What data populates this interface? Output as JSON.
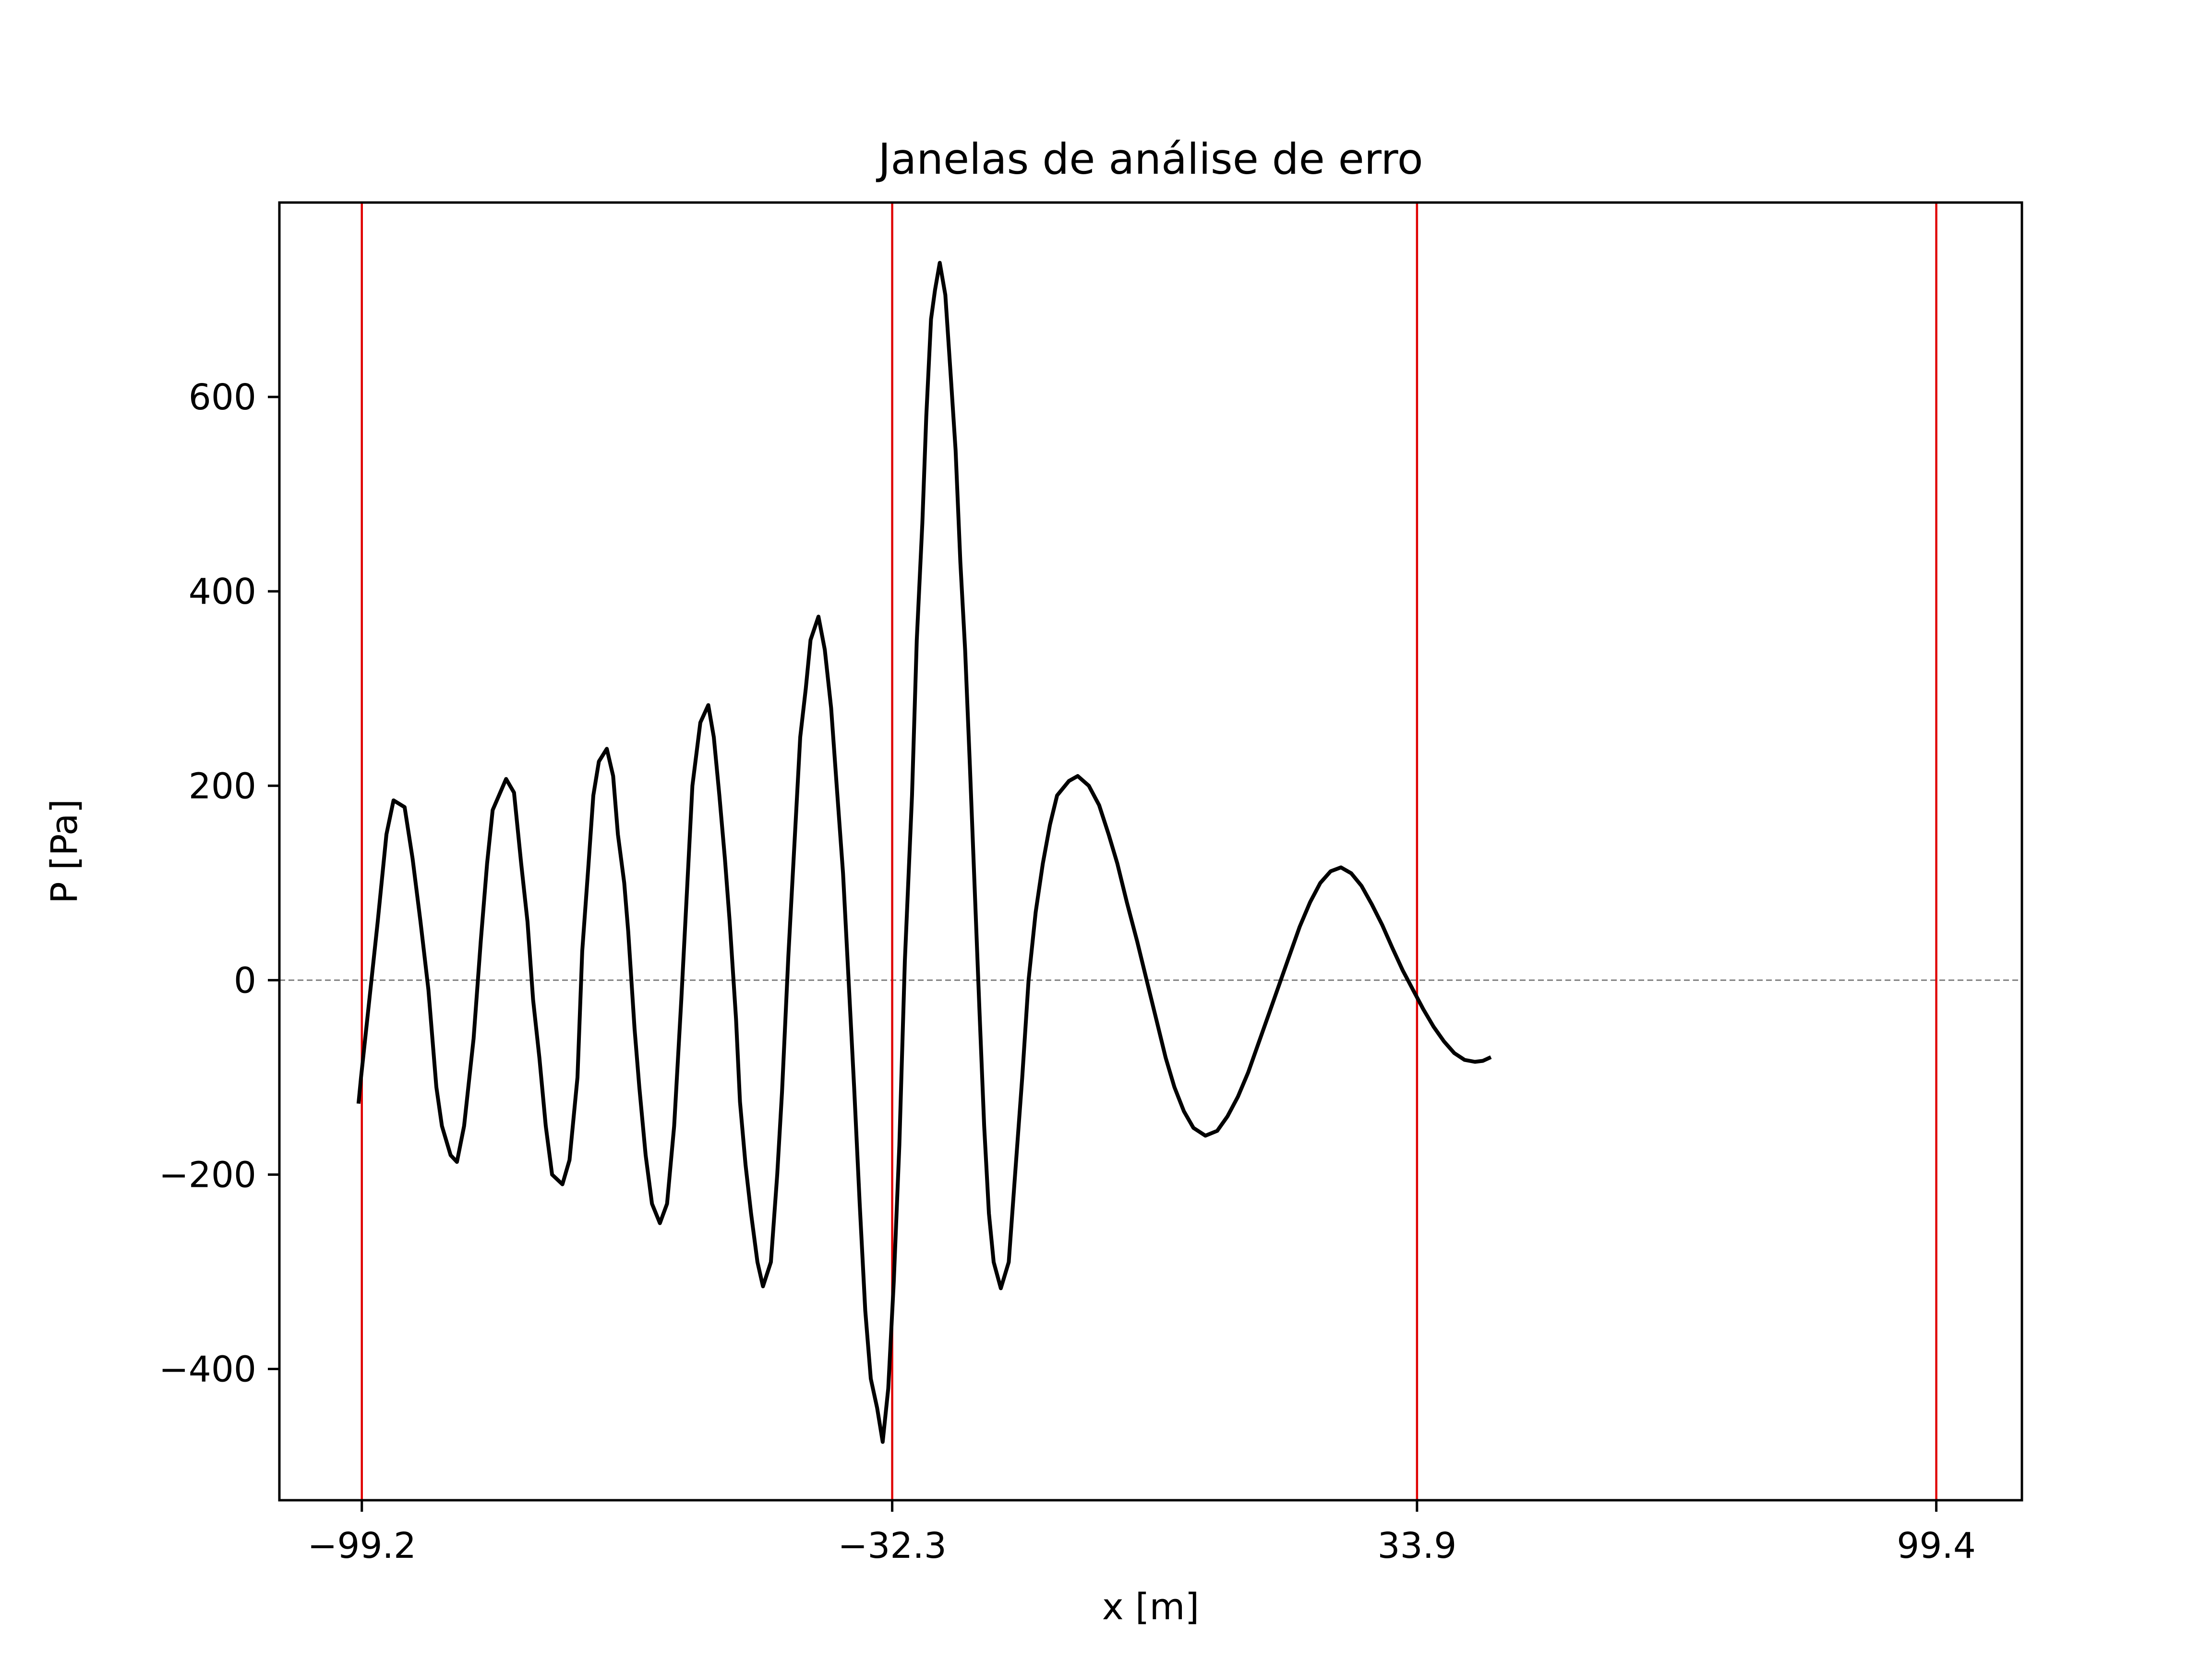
{
  "chart_data": {
    "type": "line",
    "title": "Janelas de análise de erro",
    "xlabel": "x [m]",
    "ylabel": "P [Pa]",
    "xlim": [
      -109.6,
      110.2
    ],
    "ylim": [
      -535,
      800
    ],
    "x_ticks": [
      -99.2,
      -32.3,
      33.9,
      99.4
    ],
    "x_tick_labels": [
      "−99.2",
      "−32.3",
      "33.9",
      "99.4"
    ],
    "y_ticks": [
      -400,
      -200,
      0,
      200,
      400,
      600
    ],
    "y_tick_labels": [
      "−400",
      "−200",
      "0",
      "200",
      "400",
      "600"
    ],
    "window_boundaries": [
      -99.2,
      -32.3,
      33.9,
      99.4
    ],
    "reference_line_y": 0,
    "grid": false,
    "colors": {
      "series": "#000000",
      "window_lines": "#e00000",
      "reference": "#808080"
    },
    "series": [
      {
        "points": [
          [
            -99.6,
            -125
          ],
          [
            -99.3,
            -100
          ],
          [
            -97.2,
            60
          ],
          [
            -96.1,
            150
          ],
          [
            -95.2,
            185
          ],
          [
            -93.8,
            178
          ],
          [
            -92.8,
            125
          ],
          [
            -91.8,
            60
          ],
          [
            -90.8,
            -10
          ],
          [
            -89.8,
            -110
          ],
          [
            -89.1,
            -150
          ],
          [
            -88.0,
            -180
          ],
          [
            -87.2,
            -187
          ],
          [
            -86.3,
            -150
          ],
          [
            -85.1,
            -60
          ],
          [
            -84.2,
            40
          ],
          [
            -83.4,
            120
          ],
          [
            -82.7,
            175
          ],
          [
            -81.0,
            207
          ],
          [
            -80.0,
            193
          ],
          [
            -79.1,
            120
          ],
          [
            -78.3,
            60
          ],
          [
            -77.6,
            -20
          ],
          [
            -76.8,
            -80
          ],
          [
            -76.0,
            -150
          ],
          [
            -75.2,
            -200
          ],
          [
            -73.9,
            -210
          ],
          [
            -73.0,
            -185
          ],
          [
            -72.0,
            -100
          ],
          [
            -71.4,
            30
          ],
          [
            -70.6,
            120
          ],
          [
            -70.0,
            190
          ],
          [
            -69.3,
            225
          ],
          [
            -68.3,
            238
          ],
          [
            -67.5,
            210
          ],
          [
            -66.9,
            150
          ],
          [
            -66.1,
            100
          ],
          [
            -65.6,
            50
          ],
          [
            -64.8,
            -50
          ],
          [
            -64.2,
            -110
          ],
          [
            -63.4,
            -180
          ],
          [
            -62.6,
            -230
          ],
          [
            -61.6,
            -250
          ],
          [
            -60.7,
            -230
          ],
          [
            -59.8,
            -150
          ],
          [
            -58.9,
            -20
          ],
          [
            -58.2,
            90
          ],
          [
            -57.5,
            200
          ],
          [
            -56.5,
            265
          ],
          [
            -55.5,
            283
          ],
          [
            -54.8,
            250
          ],
          [
            -54.1,
            190
          ],
          [
            -53.4,
            125
          ],
          [
            -52.8,
            60
          ],
          [
            -52.0,
            -40
          ],
          [
            -51.5,
            -125
          ],
          [
            -50.8,
            -190
          ],
          [
            -50.1,
            -240
          ],
          [
            -49.3,
            -290
          ],
          [
            -48.6,
            -315
          ],
          [
            -47.6,
            -290
          ],
          [
            -46.8,
            -200
          ],
          [
            -46.2,
            -115
          ],
          [
            -45.4,
            25
          ],
          [
            -44.6,
            145
          ],
          [
            -43.9,
            250
          ],
          [
            -43.2,
            300
          ],
          [
            -42.6,
            350
          ],
          [
            -41.6,
            374
          ],
          [
            -40.8,
            340
          ],
          [
            -40.0,
            280
          ],
          [
            -39.3,
            200
          ],
          [
            -38.5,
            110
          ],
          [
            -37.8,
            0
          ],
          [
            -37.1,
            -110
          ],
          [
            -36.4,
            -230
          ],
          [
            -35.7,
            -340
          ],
          [
            -35.0,
            -410
          ],
          [
            -34.2,
            -440
          ],
          [
            -33.5,
            -475
          ],
          [
            -32.8,
            -420
          ],
          [
            -32.1,
            -310
          ],
          [
            -31.4,
            -170
          ],
          [
            -30.7,
            20
          ],
          [
            -29.8,
            190
          ],
          [
            -29.2,
            350
          ],
          [
            -28.5,
            470
          ],
          [
            -28.0,
            580
          ],
          [
            -27.4,
            680
          ],
          [
            -26.9,
            710
          ],
          [
            -26.3,
            738
          ],
          [
            -25.6,
            705
          ],
          [
            -24.9,
            620
          ],
          [
            -24.3,
            545
          ],
          [
            -23.7,
            430
          ],
          [
            -23.1,
            340
          ],
          [
            -22.5,
            220
          ],
          [
            -21.9,
            95
          ],
          [
            -21.3,
            -30
          ],
          [
            -20.7,
            -150
          ],
          [
            -20.1,
            -240
          ],
          [
            -19.5,
            -290
          ],
          [
            -18.6,
            -317
          ],
          [
            -17.6,
            -290
          ],
          [
            -16.8,
            -200
          ],
          [
            -15.9,
            -100
          ],
          [
            -15.1,
            0
          ],
          [
            -14.2,
            70
          ],
          [
            -13.3,
            120
          ],
          [
            -12.4,
            160
          ],
          [
            -11.5,
            190
          ],
          [
            -10.0,
            205
          ],
          [
            -8.9,
            210
          ],
          [
            -7.5,
            200
          ],
          [
            -6.2,
            180
          ],
          [
            -5.0,
            150
          ],
          [
            -3.9,
            120
          ],
          [
            -2.7,
            80
          ],
          [
            -1.4,
            40
          ],
          [
            -0.2,
            0
          ],
          [
            1.0,
            -40
          ],
          [
            2.2,
            -80
          ],
          [
            3.3,
            -110
          ],
          [
            4.5,
            -135
          ],
          [
            5.7,
            -152
          ],
          [
            7.2,
            -160
          ],
          [
            8.7,
            -155
          ],
          [
            10.0,
            -140
          ],
          [
            11.3,
            -120
          ],
          [
            12.6,
            -95
          ],
          [
            13.9,
            -65
          ],
          [
            15.2,
            -35
          ],
          [
            16.5,
            -5
          ],
          [
            17.8,
            25
          ],
          [
            19.1,
            55
          ],
          [
            20.4,
            80
          ],
          [
            21.7,
            100
          ],
          [
            23.0,
            112
          ],
          [
            24.3,
            116
          ],
          [
            25.6,
            110
          ],
          [
            26.9,
            97
          ],
          [
            28.2,
            78
          ],
          [
            29.5,
            57
          ],
          [
            30.8,
            33
          ],
          [
            32.1,
            10
          ],
          [
            33.4,
            -10
          ],
          [
            34.7,
            -30
          ],
          [
            36.0,
            -48
          ],
          [
            37.3,
            -63
          ],
          [
            38.6,
            -75
          ],
          [
            39.9,
            -82
          ],
          [
            41.2,
            -84
          ],
          [
            42.2,
            -83
          ],
          [
            43.0,
            -80
          ]
        ]
      }
    ]
  }
}
